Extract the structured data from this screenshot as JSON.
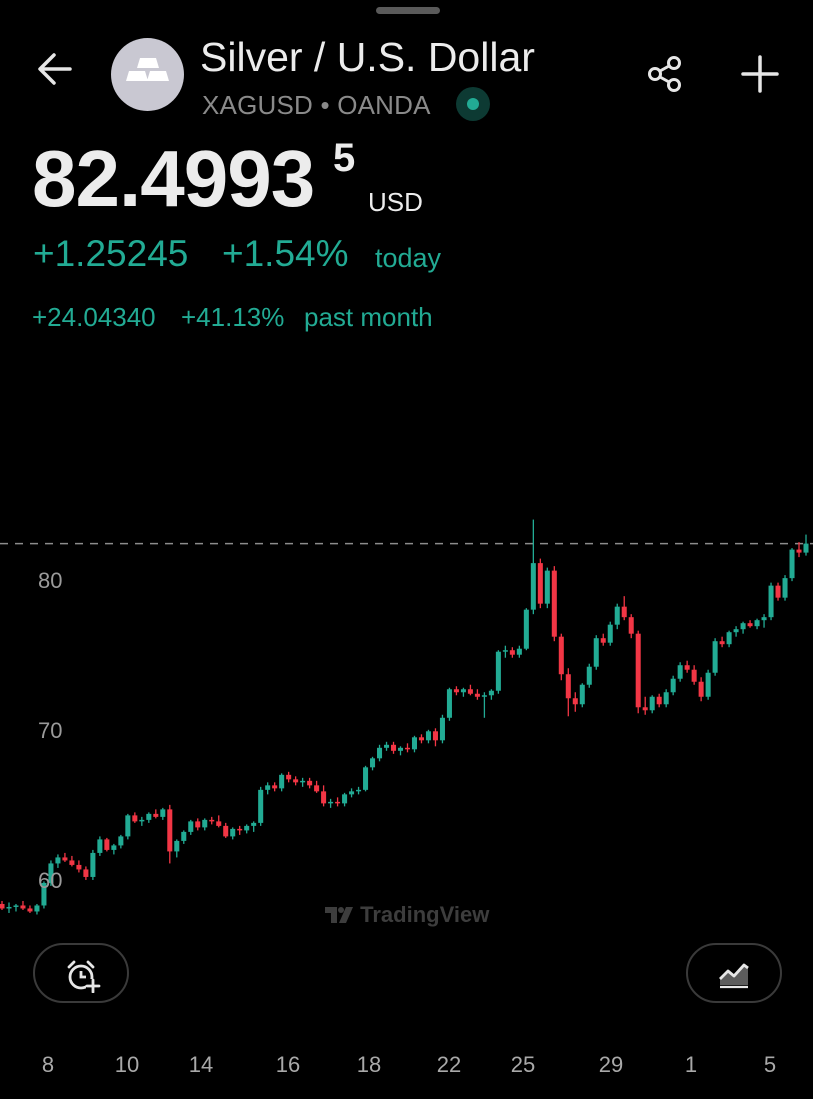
{
  "header": {
    "title": "Silver / U.S. Dollar",
    "symbol": "XAGUSD",
    "separator": "•",
    "exchange": "OANDA"
  },
  "quote": {
    "price_main": "82.4993",
    "price_sup": "5",
    "currency": "USD",
    "change_abs": "+1.25245",
    "change_pct": "+1.54%",
    "change_label": "today",
    "month_abs": "+24.04340",
    "month_pct": "+41.13%",
    "month_label": "past month"
  },
  "colors": {
    "up": "#22ab94",
    "down": "#f23645",
    "background": "#000000"
  },
  "watermark": "TradingView",
  "icons": {
    "back": "arrow-left-icon",
    "share": "share-icon",
    "add": "plus-icon",
    "alert": "alarm-plus-icon",
    "chart_style": "area-chart-icon",
    "logo": "silver-bars-icon"
  },
  "chart_data": {
    "type": "candlestick",
    "y_ticks": [
      "80",
      "70",
      "60"
    ],
    "x_ticks": [
      "8",
      "10",
      "14",
      "16",
      "18",
      "22",
      "25",
      "29",
      "1",
      "5"
    ],
    "ylim": [
      56.9,
      88.6
    ],
    "last_price": 82.5,
    "candles": [
      [
        58.5,
        58.7,
        58.1,
        58.2
      ],
      [
        58.2,
        58.6,
        57.9,
        58.3
      ],
      [
        58.3,
        58.5,
        58.0,
        58.4
      ],
      [
        58.4,
        58.7,
        58.1,
        58.2
      ],
      [
        58.2,
        58.4,
        57.9,
        58.0
      ],
      [
        58.0,
        58.5,
        57.8,
        58.4
      ],
      [
        58.4,
        60.0,
        58.2,
        59.9
      ],
      [
        59.9,
        61.4,
        59.7,
        61.2
      ],
      [
        61.2,
        61.8,
        60.9,
        61.6
      ],
      [
        61.6,
        61.9,
        61.3,
        61.4
      ],
      [
        61.4,
        61.7,
        61.0,
        61.1
      ],
      [
        61.1,
        61.4,
        60.6,
        60.8
      ],
      [
        60.8,
        61.0,
        60.1,
        60.3
      ],
      [
        60.3,
        62.1,
        60.1,
        61.9
      ],
      [
        61.9,
        63.0,
        61.7,
        62.8
      ],
      [
        62.8,
        62.9,
        62.0,
        62.1
      ],
      [
        62.1,
        62.5,
        61.8,
        62.4
      ],
      [
        62.4,
        63.1,
        62.2,
        63.0
      ],
      [
        63.0,
        64.5,
        62.8,
        64.4
      ],
      [
        64.4,
        64.6,
        63.9,
        64.0
      ],
      [
        64.0,
        64.3,
        63.7,
        64.1
      ],
      [
        64.1,
        64.6,
        63.9,
        64.5
      ],
      [
        64.5,
        64.8,
        64.2,
        64.3
      ],
      [
        64.3,
        64.9,
        64.1,
        64.8
      ],
      [
        64.8,
        65.1,
        61.2,
        62.0
      ],
      [
        62.0,
        62.8,
        61.6,
        62.7
      ],
      [
        62.7,
        63.4,
        62.5,
        63.3
      ],
      [
        63.3,
        64.1,
        63.1,
        64.0
      ],
      [
        64.0,
        64.2,
        63.4,
        63.6
      ],
      [
        63.6,
        64.2,
        63.4,
        64.1
      ],
      [
        64.1,
        64.3,
        63.8,
        64.0
      ],
      [
        64.0,
        64.4,
        63.6,
        63.7
      ],
      [
        63.7,
        63.9,
        62.9,
        63.0
      ],
      [
        63.0,
        63.6,
        62.8,
        63.5
      ],
      [
        63.5,
        63.7,
        63.1,
        63.4
      ],
      [
        63.4,
        63.8,
        63.2,
        63.7
      ],
      [
        63.7,
        64.0,
        63.3,
        63.9
      ],
      [
        63.9,
        66.3,
        63.7,
        66.1
      ],
      [
        66.1,
        66.6,
        65.8,
        66.4
      ],
      [
        66.4,
        66.6,
        66.0,
        66.2
      ],
      [
        66.2,
        67.2,
        66.0,
        67.1
      ],
      [
        67.1,
        67.3,
        66.6,
        66.8
      ],
      [
        66.8,
        67.0,
        66.4,
        66.6
      ],
      [
        66.6,
        66.9,
        66.3,
        66.7
      ],
      [
        66.7,
        66.9,
        66.2,
        66.4
      ],
      [
        66.4,
        66.7,
        65.9,
        66.0
      ],
      [
        66.0,
        66.4,
        65.0,
        65.2
      ],
      [
        65.2,
        65.5,
        64.9,
        65.3
      ],
      [
        65.3,
        65.6,
        65.0,
        65.2
      ],
      [
        65.2,
        65.9,
        65.0,
        65.8
      ],
      [
        65.8,
        66.2,
        65.6,
        66.0
      ],
      [
        66.0,
        66.3,
        65.8,
        66.1
      ],
      [
        66.1,
        67.7,
        66.0,
        67.6
      ],
      [
        67.6,
        68.3,
        67.4,
        68.2
      ],
      [
        68.2,
        69.1,
        68.0,
        68.9
      ],
      [
        68.9,
        69.3,
        68.7,
        69.1
      ],
      [
        69.1,
        69.3,
        68.5,
        68.7
      ],
      [
        68.7,
        69.0,
        68.4,
        68.9
      ],
      [
        68.9,
        69.2,
        68.6,
        68.8
      ],
      [
        68.8,
        69.7,
        68.6,
        69.6
      ],
      [
        69.6,
        69.8,
        69.2,
        69.4
      ],
      [
        69.4,
        70.1,
        69.2,
        70.0
      ],
      [
        70.0,
        70.2,
        69.0,
        69.4
      ],
      [
        69.4,
        71.1,
        69.2,
        70.9
      ],
      [
        70.9,
        72.9,
        70.7,
        72.8
      ],
      [
        72.8,
        73.0,
        72.4,
        72.6
      ],
      [
        72.6,
        72.9,
        72.3,
        72.8
      ],
      [
        72.8,
        73.1,
        72.4,
        72.5
      ],
      [
        72.5,
        72.8,
        72.1,
        72.3
      ],
      [
        72.3,
        72.6,
        70.9,
        72.4
      ],
      [
        72.4,
        72.8,
        72.1,
        72.7
      ],
      [
        72.7,
        75.4,
        72.5,
        75.3
      ],
      [
        75.3,
        75.7,
        74.9,
        75.4
      ],
      [
        75.4,
        75.6,
        74.9,
        75.1
      ],
      [
        75.1,
        75.7,
        74.9,
        75.5
      ],
      [
        75.5,
        78.2,
        75.4,
        78.1
      ],
      [
        78.1,
        84.1,
        77.8,
        81.2
      ],
      [
        81.2,
        81.5,
        78.2,
        78.5
      ],
      [
        78.5,
        80.9,
        78.2,
        80.7
      ],
      [
        80.7,
        81.0,
        76.0,
        76.3
      ],
      [
        76.3,
        76.5,
        73.4,
        73.8
      ],
      [
        73.8,
        74.2,
        71.0,
        72.2
      ],
      [
        72.2,
        72.6,
        71.3,
        71.8
      ],
      [
        71.8,
        73.2,
        71.6,
        73.1
      ],
      [
        73.1,
        74.5,
        72.9,
        74.3
      ],
      [
        74.3,
        76.4,
        74.1,
        76.2
      ],
      [
        76.2,
        76.5,
        75.7,
        75.9
      ],
      [
        75.9,
        77.3,
        75.7,
        77.1
      ],
      [
        77.1,
        78.5,
        76.8,
        78.3
      ],
      [
        78.3,
        79.0,
        77.4,
        77.6
      ],
      [
        77.6,
        77.8,
        76.2,
        76.5
      ],
      [
        76.5,
        76.7,
        71.2,
        71.6
      ],
      [
        71.6,
        72.3,
        71.1,
        71.4
      ],
      [
        71.4,
        72.4,
        71.2,
        72.3
      ],
      [
        72.3,
        72.5,
        71.6,
        71.8
      ],
      [
        71.8,
        72.8,
        71.6,
        72.6
      ],
      [
        72.6,
        73.7,
        72.4,
        73.5
      ],
      [
        73.5,
        74.6,
        73.3,
        74.4
      ],
      [
        74.4,
        74.7,
        73.9,
        74.1
      ],
      [
        74.1,
        74.4,
        73.1,
        73.3
      ],
      [
        73.3,
        73.6,
        72.0,
        72.3
      ],
      [
        72.3,
        74.1,
        72.1,
        73.9
      ],
      [
        73.9,
        76.2,
        73.7,
        76.0
      ],
      [
        76.0,
        76.3,
        75.6,
        75.8
      ],
      [
        75.8,
        76.7,
        75.6,
        76.6
      ],
      [
        76.6,
        77.0,
        76.3,
        76.8
      ],
      [
        76.8,
        77.3,
        76.5,
        77.2
      ],
      [
        77.2,
        77.4,
        76.9,
        77.0
      ],
      [
        77.0,
        77.5,
        76.8,
        77.4
      ],
      [
        77.4,
        77.8,
        76.9,
        77.6
      ],
      [
        77.6,
        79.9,
        77.4,
        79.7
      ],
      [
        79.7,
        79.9,
        78.7,
        78.9
      ],
      [
        78.9,
        80.4,
        78.7,
        80.2
      ],
      [
        80.2,
        82.2,
        80.0,
        82.1
      ],
      [
        82.1,
        82.6,
        81.6,
        81.9
      ],
      [
        81.9,
        83.1,
        81.7,
        82.5
      ]
    ]
  }
}
